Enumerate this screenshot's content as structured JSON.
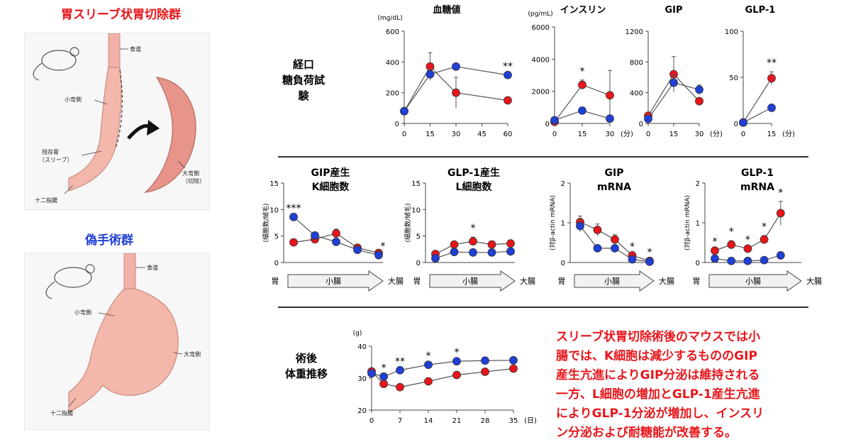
{
  "left": {
    "sleeve_title": "胃スリーブ状胃切除群",
    "sham_title": "偽手術群",
    "sleeve_labels": {
      "esophagus": "食道",
      "lesser": "小弯側",
      "remnant": "残存胃",
      "remnant_sub": "（スリーブ）",
      "duodenum": "十二指腸",
      "greater": "大弯側",
      "greater_sub": "（切除）"
    },
    "sham_labels": {
      "esophagus": "食道",
      "lesser": "小弯側",
      "greater": "大弯側",
      "duodenum": "十二指腸"
    }
  },
  "rows": {
    "ogtt_line1": "経口",
    "ogtt_line2": "糖負荷試験",
    "weight_line1": "術後",
    "weight_line2": "体重推移"
  },
  "summary_lines": [
    "スリーブ状胃切除術後のマウスでは小",
    "腸では、K細胞は減少するもののGIP",
    "産生亢進によりGIP分泌は維持される",
    "一方、L細胞の増加とGLP-1産生亢進",
    "によりGLP-1分泌が増加し、インスリ",
    "ン分泌および耐糖能が改善する。"
  ],
  "colors": {
    "sleeve": "#e8161b",
    "sham": "#1f3fd6"
  },
  "chart_data": [
    {
      "id": "glucose",
      "type": "line",
      "title": "血糖値",
      "unit": "(mg/dL)",
      "x": [
        0,
        15,
        30,
        60
      ],
      "xticks": [
        0,
        15,
        30,
        45,
        60
      ],
      "xlim": [
        0,
        60
      ],
      "xunit": "",
      "ylim": [
        0,
        600
      ],
      "yticks": [
        0,
        200,
        400,
        600
      ],
      "series": [
        {
          "color": "red",
          "values": [
            80,
            370,
            200,
            150
          ],
          "err": [
            0,
            90,
            100,
            0
          ]
        },
        {
          "color": "blue",
          "values": [
            80,
            320,
            370,
            315
          ],
          "err": [
            0,
            30,
            0,
            0
          ]
        }
      ],
      "stars": [
        {
          "x": 60,
          "label": "**"
        }
      ]
    },
    {
      "id": "insulin",
      "type": "line",
      "title": "インスリン",
      "unit": "(pg/mL)",
      "x": [
        0,
        15,
        30
      ],
      "xticks": [
        0,
        15,
        30
      ],
      "xlim": [
        0,
        30
      ],
      "xunit": "(分)",
      "ylim": [
        0,
        6000
      ],
      "yticks": [
        0,
        2000,
        4000,
        6000
      ],
      "series": [
        {
          "color": "red",
          "values": [
            100,
            2400,
            1750
          ],
          "err": [
            0,
            300,
            1550
          ]
        },
        {
          "color": "blue",
          "values": [
            200,
            800,
            300
          ],
          "err": [
            0,
            200,
            0
          ]
        }
      ],
      "stars": [
        {
          "x": 15,
          "label": "*"
        }
      ]
    },
    {
      "id": "gip",
      "type": "line",
      "title": "GIP",
      "unit": "",
      "x": [
        0,
        15,
        30
      ],
      "xticks": [
        0,
        15,
        30
      ],
      "xlim": [
        0,
        30
      ],
      "xunit": "(分)",
      "ylim": [
        0,
        1200
      ],
      "yticks": [
        0,
        400,
        800,
        1200
      ],
      "series": [
        {
          "color": "red",
          "values": [
            100,
            640,
            290
          ],
          "err": [
            0,
            230,
            0
          ]
        },
        {
          "color": "blue",
          "values": [
            60,
            530,
            440
          ],
          "err": [
            0,
            100,
            60
          ]
        }
      ],
      "stars": []
    },
    {
      "id": "glp1",
      "type": "line",
      "title": "GLP-1",
      "unit": "",
      "x": [
        0,
        15
      ],
      "xticks": [
        0,
        15
      ],
      "xlim": [
        0,
        15
      ],
      "xunit": "(分)",
      "ylim": [
        0,
        100
      ],
      "yticks": [
        0,
        50,
        100
      ],
      "series": [
        {
          "color": "red",
          "values": [
            1,
            49
          ],
          "err": [
            0,
            7
          ]
        },
        {
          "color": "blue",
          "values": [
            1,
            17
          ],
          "err": [
            0,
            0
          ]
        }
      ],
      "stars": [
        {
          "x": 15,
          "label": "**"
        }
      ]
    },
    {
      "id": "kcell",
      "type": "line",
      "title": "GIP産生",
      "title2": "K細胞数",
      "ylabel": "(細胞数/絨毛)",
      "ylim": [
        0,
        15
      ],
      "yticks": [
        0,
        5,
        10,
        15
      ],
      "xleft": "胃",
      "xright": "大腸",
      "arrow": "小腸",
      "n": 5,
      "series": [
        {
          "color": "red",
          "values": [
            3.8,
            4.4,
            5.5,
            2.8,
            1.8
          ],
          "err": [
            0,
            0,
            0.8,
            0,
            0
          ]
        },
        {
          "color": "blue",
          "values": [
            8.6,
            5.1,
            3.9,
            2.4,
            1.4
          ],
          "err": [
            0,
            0,
            0,
            0,
            0
          ]
        }
      ],
      "stars": [
        {
          "i": 0,
          "label": "***"
        }
      ],
      "side_star": "*"
    },
    {
      "id": "lcell",
      "type": "line",
      "title": "GLP-1産生",
      "title2": "L細胞数",
      "ylabel": "(細胞数/絨毛)",
      "ylim": [
        0,
        15
      ],
      "yticks": [
        0,
        5,
        10,
        15
      ],
      "xleft": "胃",
      "xright": "大腸",
      "arrow": "小腸",
      "n": 5,
      "series": [
        {
          "color": "red",
          "values": [
            1.6,
            3.4,
            4.0,
            3.4,
            3.6
          ],
          "err": [
            0,
            0,
            0.8,
            0,
            0
          ]
        },
        {
          "color": "blue",
          "values": [
            0.8,
            2.0,
            1.9,
            1.9,
            2.1
          ],
          "err": [
            0,
            0,
            0,
            0,
            0
          ]
        }
      ],
      "stars": [
        {
          "i": 2,
          "label": "*"
        }
      ]
    },
    {
      "id": "gipmrna",
      "type": "line",
      "title": "GIP",
      "title2": "mRNA",
      "ylabel": "(対β-actin mRNA)",
      "ylim": [
        0,
        2
      ],
      "yticks": [
        0,
        1,
        2
      ],
      "xleft": "胃",
      "xright": "大腸",
      "arrow": "小腸",
      "n": 5,
      "series": [
        {
          "color": "red",
          "values": [
            1.02,
            0.82,
            0.58,
            0.18,
            0.04
          ],
          "err": [
            0.15,
            0.15,
            0.12,
            0,
            0
          ]
        },
        {
          "color": "blue",
          "values": [
            0.92,
            0.36,
            0.36,
            0.08,
            0.02
          ],
          "err": [
            0.15,
            0,
            0,
            0,
            0
          ]
        }
      ],
      "stars": [
        {
          "i": 3,
          "label": "*"
        },
        {
          "i": 4,
          "label": "*"
        }
      ]
    },
    {
      "id": "glp1mrna",
      "type": "line",
      "title": "GLP-1",
      "title2": "mRNA",
      "ylabel": "(対β-actin mRNA)",
      "ylim": [
        0,
        2
      ],
      "yticks": [
        0,
        1,
        2
      ],
      "xleft": "胃",
      "xright": "大腸",
      "arrow": "小腸",
      "n": 6,
      "series": [
        {
          "color": "red",
          "values": [
            0.3,
            0.45,
            0.35,
            0.58,
            1.24,
            0.0
          ],
          "err": [
            0,
            0.1,
            0,
            0.1,
            0.3,
            0
          ]
        },
        {
          "color": "blue",
          "values": [
            0.1,
            0.04,
            0.04,
            0.06,
            0.18,
            0.0
          ],
          "err": [
            0,
            0,
            0,
            0,
            0.08,
            0
          ]
        }
      ],
      "stars": [
        {
          "i": 0,
          "label": "*"
        },
        {
          "i": 1,
          "label": "*"
        },
        {
          "i": 2,
          "label": "*"
        },
        {
          "i": 3,
          "label": "*"
        },
        {
          "i": 4,
          "label": "*"
        }
      ]
    },
    {
      "id": "weight",
      "type": "line",
      "title": "",
      "unit": "(g)",
      "x": [
        0,
        3,
        7,
        14,
        21,
        28,
        35
      ],
      "xticks": [
        0,
        7,
        14,
        21,
        28,
        35
      ],
      "xlim": [
        0,
        35
      ],
      "xunit": "(日)",
      "ylim": [
        20,
        40
      ],
      "yticks": [
        20,
        30,
        40
      ],
      "series": [
        {
          "color": "red",
          "values": [
            32.1,
            28.2,
            27.2,
            29.0,
            31.0,
            32.0,
            33.0
          ],
          "err": [
            0,
            0,
            0,
            0,
            0,
            0,
            0
          ]
        },
        {
          "color": "blue",
          "values": [
            31.5,
            30.5,
            32.5,
            34.2,
            35.3,
            35.5,
            35.6
          ],
          "err": [
            0,
            0,
            0,
            0,
            0,
            0,
            0.8
          ]
        }
      ],
      "stars": [
        {
          "x": 3,
          "label": "*"
        },
        {
          "x": 7,
          "label": "**"
        },
        {
          "x": 14,
          "label": "*"
        },
        {
          "x": 21,
          "label": "*"
        }
      ]
    }
  ]
}
